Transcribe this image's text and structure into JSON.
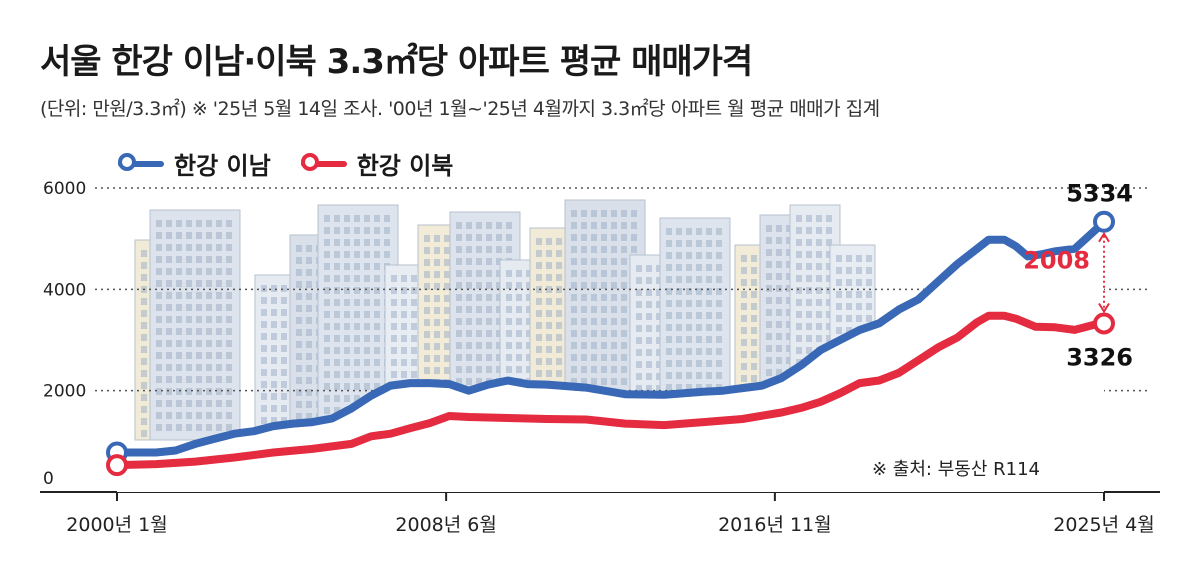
{
  "title": "서울 한강 이남·이북 3.3㎡당 아파트 평균 매매가격",
  "subtitle": "(단위: 만원/3.3㎡) ※ '25년 5월 14일 조사. '00년 1월~'25년 4월까지 3.3㎡당 아파트 월 평균 매매가 집계",
  "source": "※ 출처: 부동산 R114",
  "colors": {
    "south": "#3868b6",
    "north": "#e42b3f",
    "grid": "#555555",
    "highlight": "#e42b3f"
  },
  "chart_data": {
    "type": "line",
    "legend_position": "top-left",
    "grid": "horizontal dotted",
    "ylim": [
      0,
      6000
    ],
    "y_ticks": [
      "0",
      "2000",
      "4000",
      "6000"
    ],
    "x_tick_labels": [
      "2000년 1월",
      "2008년 6월",
      "2016년 11월",
      "2025년 4월"
    ],
    "x_ticks": [
      2000.0,
      2008.42,
      2016.83,
      2025.25
    ],
    "xlim": [
      2000.0,
      2025.25
    ],
    "series": [
      {
        "name": "한강 이남",
        "x": [
          2000.0,
          2001.0,
          2001.5,
          2002.0,
          2002.5,
          2003.0,
          2003.5,
          2004.0,
          2004.5,
          2005.0,
          2005.5,
          2006.0,
          2006.5,
          2007.0,
          2007.5,
          2008.0,
          2008.5,
          2009.0,
          2009.5,
          2010.0,
          2010.5,
          2011.0,
          2012.0,
          2013.0,
          2014.0,
          2015.0,
          2015.5,
          2016.0,
          2016.5,
          2017.0,
          2017.5,
          2018.0,
          2018.5,
          2019.0,
          2019.5,
          2020.0,
          2020.5,
          2021.0,
          2021.5,
          2022.0,
          2022.3,
          2022.7,
          2023.0,
          2023.3,
          2023.7,
          2024.0,
          2024.5,
          2025.0,
          2025.25
        ],
        "values": [
          780,
          780,
          820,
          950,
          1050,
          1150,
          1200,
          1300,
          1350,
          1380,
          1450,
          1650,
          1900,
          2100,
          2150,
          2150,
          2130,
          2000,
          2120,
          2200,
          2130,
          2120,
          2060,
          1930,
          1920,
          1980,
          2000,
          2050,
          2100,
          2250,
          2500,
          2800,
          3000,
          3200,
          3330,
          3600,
          3800,
          4150,
          4500,
          4800,
          4980,
          4980,
          4850,
          4650,
          4700,
          4750,
          4800,
          5150,
          5334
        ],
        "end_label": "5334"
      },
      {
        "name": "한강 이북",
        "x": [
          2000.0,
          2001.0,
          2002.0,
          2003.0,
          2004.0,
          2005.0,
          2006.0,
          2006.5,
          2007.0,
          2007.5,
          2008.0,
          2008.5,
          2009.0,
          2010.0,
          2011.0,
          2012.0,
          2013.0,
          2014.0,
          2015.0,
          2016.0,
          2017.0,
          2017.5,
          2018.0,
          2018.5,
          2019.0,
          2019.5,
          2020.0,
          2020.5,
          2021.0,
          2021.5,
          2022.0,
          2022.3,
          2022.7,
          2023.0,
          2023.5,
          2024.0,
          2024.5,
          2025.0,
          2025.25
        ],
        "values": [
          530,
          550,
          600,
          680,
          780,
          850,
          950,
          1100,
          1150,
          1260,
          1360,
          1500,
          1480,
          1460,
          1440,
          1430,
          1350,
          1320,
          1380,
          1440,
          1570,
          1660,
          1780,
          1950,
          2150,
          2200,
          2350,
          2600,
          2850,
          3050,
          3350,
          3480,
          3480,
          3420,
          3260,
          3250,
          3200,
          3300,
          3326
        ],
        "end_label": "3326"
      }
    ],
    "annotations": [
      {
        "text": "2008",
        "note": "gap"
      }
    ]
  }
}
